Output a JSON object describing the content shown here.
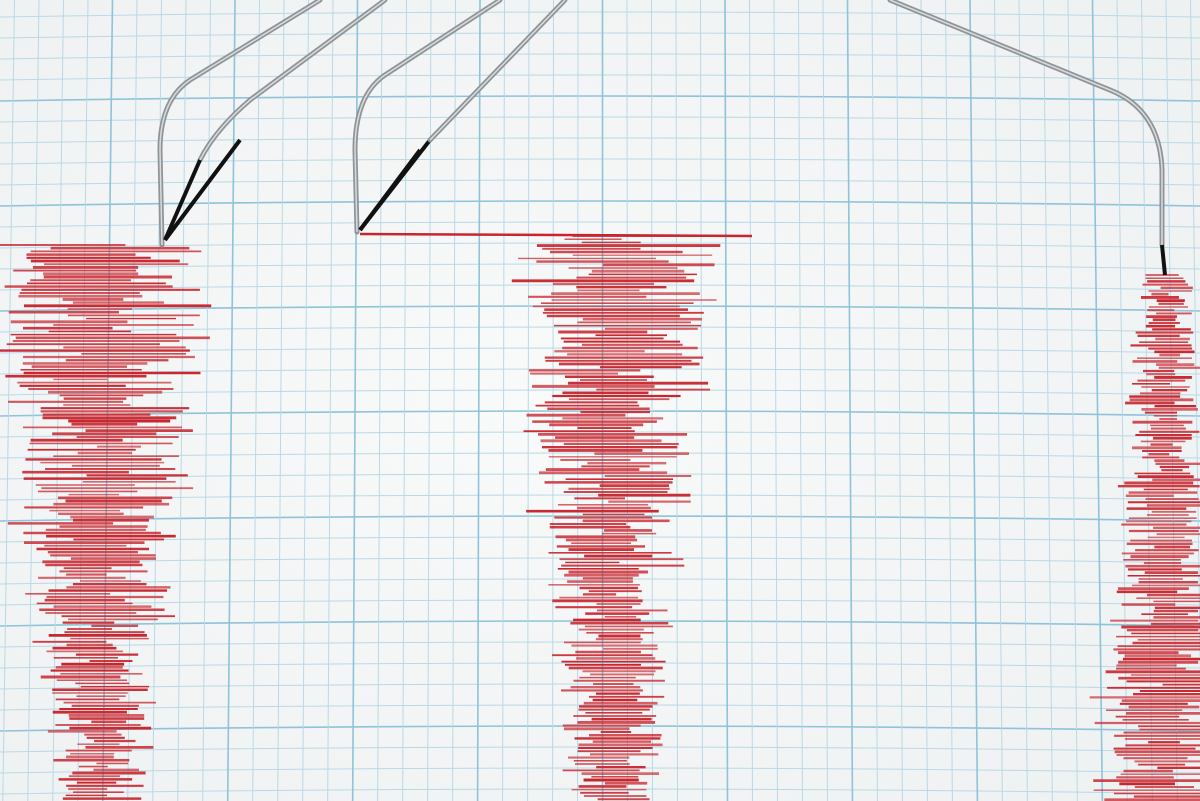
{
  "scene": {
    "subject": "seismograph",
    "traces": 3,
    "needles": 3
  },
  "colors": {
    "paper": "#eef1f2",
    "paper_highlight": "#f9fafa",
    "grid_minor": "#b9d9e6",
    "grid_major": "#8fc3d8",
    "trace": "#c8262e",
    "needle": "#8e9498",
    "needle_shadow": "#111111"
  }
}
